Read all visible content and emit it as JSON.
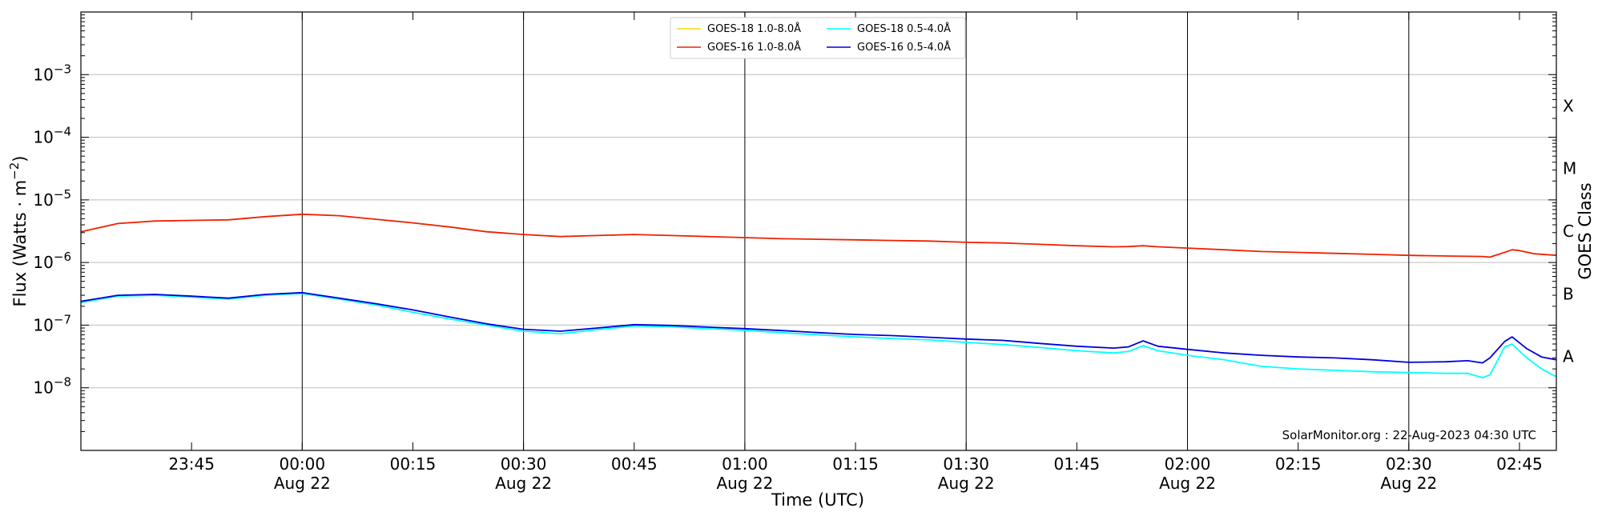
{
  "chart_data": {
    "type": "line",
    "title": "",
    "xlabel": "Time (UTC)",
    "ylabel": "Flux (Watts · m",
    "ylabel_sup": "−2",
    "ylabel_close": ")",
    "y2label": "GOES Class",
    "yscale": "log",
    "xlim": [
      "2023-08-21 23:30",
      "2023-08-22 02:50"
    ],
    "ylim": [
      1e-09,
      0.01
    ],
    "grid": "horizontal lines at decades; vertical lines every 30 min",
    "legend_position": "top-center",
    "annotation": "SolarMonitor.org : 22-Aug-2023 04:30 UTC",
    "x_ticks": [
      {
        "t": "2023-08-21 23:45",
        "label": "23:45",
        "date": ""
      },
      {
        "t": "2023-08-22 00:00",
        "label": "00:00",
        "date": "Aug 22"
      },
      {
        "t": "2023-08-22 00:15",
        "label": "00:15",
        "date": ""
      },
      {
        "t": "2023-08-22 00:30",
        "label": "00:30",
        "date": "Aug 22"
      },
      {
        "t": "2023-08-22 00:45",
        "label": "00:45",
        "date": ""
      },
      {
        "t": "2023-08-22 01:00",
        "label": "01:00",
        "date": "Aug 22"
      },
      {
        "t": "2023-08-22 01:15",
        "label": "01:15",
        "date": ""
      },
      {
        "t": "2023-08-22 01:30",
        "label": "01:30",
        "date": "Aug 22"
      },
      {
        "t": "2023-08-22 01:45",
        "label": "01:45",
        "date": ""
      },
      {
        "t": "2023-08-22 02:00",
        "label": "02:00",
        "date": "Aug 22"
      },
      {
        "t": "2023-08-22 02:15",
        "label": "02:15",
        "date": ""
      },
      {
        "t": "2023-08-22 02:30",
        "label": "02:30",
        "date": "Aug 22"
      },
      {
        "t": "2023-08-22 02:45",
        "label": "02:45",
        "date": ""
      }
    ],
    "y_ticks": [
      {
        "value": 0.001,
        "base": "10",
        "exp": "−3"
      },
      {
        "value": 0.0001,
        "base": "10",
        "exp": "−4"
      },
      {
        "value": 1e-05,
        "base": "10",
        "exp": "−5"
      },
      {
        "value": 1e-06,
        "base": "10",
        "exp": "−6"
      },
      {
        "value": 1e-07,
        "base": "10",
        "exp": "−7"
      },
      {
        "value": 1e-08,
        "base": "10",
        "exp": "−8"
      }
    ],
    "goes_classes": [
      {
        "label": "X",
        "value": 0.0003162
      },
      {
        "label": "M",
        "value": 3.162e-05
      },
      {
        "label": "C",
        "value": 3.162e-06
      },
      {
        "label": "B",
        "value": 3.162e-07
      },
      {
        "label": "A",
        "value": 3.162e-08
      }
    ],
    "series": [
      {
        "name": "GOES-18 1.0-8.0",
        "color": "#ffd700",
        "x": [],
        "y": []
      },
      {
        "name": "GOES-16 1.0-8.0",
        "color": "#ee2200",
        "x": [
          "2023-08-21 23:30",
          "2023-08-21 23:35",
          "2023-08-21 23:40",
          "2023-08-21 23:45",
          "2023-08-21 23:50",
          "2023-08-21 23:55",
          "2023-08-22 00:00",
          "2023-08-22 00:05",
          "2023-08-22 00:10",
          "2023-08-22 00:15",
          "2023-08-22 00:20",
          "2023-08-22 00:25",
          "2023-08-22 00:30",
          "2023-08-22 00:35",
          "2023-08-22 00:40",
          "2023-08-22 00:45",
          "2023-08-22 00:50",
          "2023-08-22 00:55",
          "2023-08-22 01:00",
          "2023-08-22 01:05",
          "2023-08-22 01:10",
          "2023-08-22 01:15",
          "2023-08-22 01:20",
          "2023-08-22 01:25",
          "2023-08-22 01:30",
          "2023-08-22 01:35",
          "2023-08-22 01:40",
          "2023-08-22 01:45",
          "2023-08-22 01:50",
          "2023-08-22 01:52",
          "2023-08-22 01:54",
          "2023-08-22 01:56",
          "2023-08-22 02:00",
          "2023-08-22 02:05",
          "2023-08-22 02:10",
          "2023-08-22 02:15",
          "2023-08-22 02:20",
          "2023-08-22 02:25",
          "2023-08-22 02:30",
          "2023-08-22 02:35",
          "2023-08-22 02:40",
          "2023-08-22 02:41",
          "2023-08-22 02:43",
          "2023-08-22 02:44",
          "2023-08-22 02:45",
          "2023-08-22 02:47",
          "2023-08-22 02:50"
        ],
        "y": [
          3.1e-06,
          4.2e-06,
          4.6e-06,
          4.7e-06,
          4.8e-06,
          5.4e-06,
          5.9e-06,
          5.6e-06,
          4.9e-06,
          4.3e-06,
          3.7e-06,
          3.1e-06,
          2.8e-06,
          2.6e-06,
          2.7e-06,
          2.8e-06,
          2.7e-06,
          2.6e-06,
          2.5e-06,
          2.4e-06,
          2.35e-06,
          2.3e-06,
          2.25e-06,
          2.2e-06,
          2.1e-06,
          2.05e-06,
          1.95e-06,
          1.85e-06,
          1.78e-06,
          1.8e-06,
          1.85e-06,
          1.78e-06,
          1.7e-06,
          1.6e-06,
          1.5e-06,
          1.45e-06,
          1.4e-06,
          1.35e-06,
          1.3e-06,
          1.27e-06,
          1.25e-06,
          1.22e-06,
          1.45e-06,
          1.6e-06,
          1.55e-06,
          1.38e-06,
          1.3e-06
        ]
      },
      {
        "name": "GOES-18 0.5-4.0",
        "color": "#00ffff",
        "x": [
          "2023-08-21 23:30",
          "2023-08-21 23:35",
          "2023-08-21 23:40",
          "2023-08-21 23:45",
          "2023-08-21 23:50",
          "2023-08-21 23:55",
          "2023-08-22 00:00",
          "2023-08-22 00:05",
          "2023-08-22 00:10",
          "2023-08-22 00:15",
          "2023-08-22 00:20",
          "2023-08-22 00:25",
          "2023-08-22 00:30",
          "2023-08-22 00:35",
          "2023-08-22 00:40",
          "2023-08-22 00:45",
          "2023-08-22 00:50",
          "2023-08-22 00:55",
          "2023-08-22 01:00",
          "2023-08-22 01:05",
          "2023-08-22 01:10",
          "2023-08-22 01:15",
          "2023-08-22 01:20",
          "2023-08-22 01:25",
          "2023-08-22 01:30",
          "2023-08-22 01:35",
          "2023-08-22 01:40",
          "2023-08-22 01:45",
          "2023-08-22 01:50",
          "2023-08-22 01:52",
          "2023-08-22 01:54",
          "2023-08-22 01:56",
          "2023-08-22 02:00",
          "2023-08-22 02:05",
          "2023-08-22 02:10",
          "2023-08-22 02:15",
          "2023-08-22 02:20",
          "2023-08-22 02:25",
          "2023-08-22 02:30",
          "2023-08-22 02:35",
          "2023-08-22 02:38",
          "2023-08-22 02:40",
          "2023-08-22 02:41",
          "2023-08-22 02:43",
          "2023-08-22 02:44",
          "2023-08-22 02:46",
          "2023-08-22 02:48",
          "2023-08-22 02:50"
        ],
        "y": [
          2.3e-07,
          2.9e-07,
          3e-07,
          2.8e-07,
          2.6e-07,
          3e-07,
          3.2e-07,
          2.6e-07,
          2.1e-07,
          1.6e-07,
          1.25e-07,
          1e-07,
          8e-08,
          7.3e-08,
          8.5e-08,
          9.7e-08,
          9.4e-08,
          8.8e-08,
          8.3e-08,
          7.6e-08,
          7e-08,
          6.5e-08,
          6.1e-08,
          5.8e-08,
          5.3e-08,
          4.9e-08,
          4.4e-08,
          3.9e-08,
          3.6e-08,
          3.8e-08,
          4.7e-08,
          3.9e-08,
          3.3e-08,
          2.8e-08,
          2.2e-08,
          2e-08,
          1.9e-08,
          1.8e-08,
          1.75e-08,
          1.7e-08,
          1.7e-08,
          1.45e-08,
          1.6e-08,
          4.5e-08,
          5e-08,
          3e-08,
          2e-08,
          1.5e-08
        ]
      },
      {
        "name": "GOES-16 0.5-4.0",
        "color": "#0000dd",
        "x": [
          "2023-08-21 23:30",
          "2023-08-21 23:35",
          "2023-08-21 23:40",
          "2023-08-21 23:45",
          "2023-08-21 23:50",
          "2023-08-21 23:55",
          "2023-08-22 00:00",
          "2023-08-22 00:05",
          "2023-08-22 00:10",
          "2023-08-22 00:15",
          "2023-08-22 00:20",
          "2023-08-22 00:25",
          "2023-08-22 00:30",
          "2023-08-22 00:35",
          "2023-08-22 00:40",
          "2023-08-22 00:45",
          "2023-08-22 00:50",
          "2023-08-22 00:55",
          "2023-08-22 01:00",
          "2023-08-22 01:05",
          "2023-08-22 01:10",
          "2023-08-22 01:15",
          "2023-08-22 01:20",
          "2023-08-22 01:25",
          "2023-08-22 01:30",
          "2023-08-22 01:35",
          "2023-08-22 01:40",
          "2023-08-22 01:45",
          "2023-08-22 01:50",
          "2023-08-22 01:52",
          "2023-08-22 01:54",
          "2023-08-22 01:56",
          "2023-08-22 02:00",
          "2023-08-22 02:05",
          "2023-08-22 02:10",
          "2023-08-22 02:15",
          "2023-08-22 02:20",
          "2023-08-22 02:25",
          "2023-08-22 02:30",
          "2023-08-22 02:35",
          "2023-08-22 02:38",
          "2023-08-22 02:40",
          "2023-08-22 02:41",
          "2023-08-22 02:43",
          "2023-08-22 02:44",
          "2023-08-22 02:46",
          "2023-08-22 02:48",
          "2023-08-22 02:50"
        ],
        "y": [
          2.4e-07,
          3e-07,
          3.1e-07,
          2.9e-07,
          2.7e-07,
          3.1e-07,
          3.3e-07,
          2.7e-07,
          2.2e-07,
          1.75e-07,
          1.35e-07,
          1.05e-07,
          8.6e-08,
          8e-08,
          9e-08,
          1.02e-07,
          9.9e-08,
          9.3e-08,
          8.8e-08,
          8.2e-08,
          7.6e-08,
          7.1e-08,
          6.8e-08,
          6.4e-08,
          6e-08,
          5.7e-08,
          5.1e-08,
          4.6e-08,
          4.3e-08,
          4.5e-08,
          5.6e-08,
          4.6e-08,
          4.1e-08,
          3.6e-08,
          3.3e-08,
          3.1e-08,
          3e-08,
          2.8e-08,
          2.55e-08,
          2.6e-08,
          2.7e-08,
          2.5e-08,
          3e-08,
          5.5e-08,
          6.5e-08,
          4.2e-08,
          3.1e-08,
          2.8e-08
        ]
      }
    ],
    "legend_suffix": "Å"
  }
}
